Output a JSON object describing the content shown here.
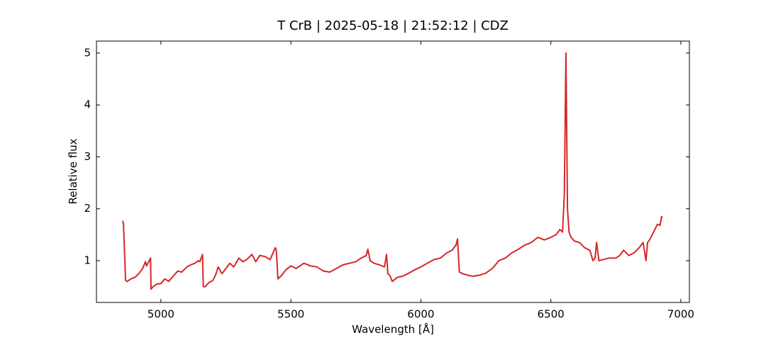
{
  "chart_data": {
    "type": "line",
    "title": "T CrB | 2025-05-18 | 21:52:12 | CDZ",
    "x_label": "Wavelength [Å]",
    "y_label": "Relative flux",
    "xlim": [
      4752,
      7033
    ],
    "ylim": [
      0.195,
      5.23
    ],
    "xticks": [
      5000,
      5500,
      6000,
      6500,
      7000
    ],
    "yticks": [
      1,
      2,
      3,
      4,
      5
    ],
    "series": [
      {
        "name": "T CrB",
        "color": "#d62728",
        "x": [
          4853,
          4856,
          4864,
          4870,
          4885,
          4900,
          4915,
          4930,
          4940,
          4945,
          4955,
          4960,
          4962,
          4970,
          4985,
          5000,
          5015,
          5030,
          5050,
          5065,
          5080,
          5100,
          5115,
          5130,
          5145,
          5150,
          5160,
          5163,
          5170,
          5185,
          5200,
          5210,
          5220,
          5235,
          5250,
          5265,
          5280,
          5300,
          5315,
          5330,
          5350,
          5365,
          5380,
          5400,
          5420,
          5440,
          5444,
          5450,
          5465,
          5480,
          5500,
          5520,
          5550,
          5575,
          5600,
          5625,
          5650,
          5675,
          5700,
          5725,
          5750,
          5770,
          5790,
          5796,
          5805,
          5820,
          5840,
          5860,
          5868,
          5873,
          5880,
          5890,
          5910,
          5930,
          5950,
          5975,
          6000,
          6025,
          6050,
          6075,
          6100,
          6120,
          6135,
          6141,
          6148,
          6160,
          6180,
          6200,
          6225,
          6250,
          6275,
          6300,
          6325,
          6350,
          6375,
          6400,
          6425,
          6450,
          6475,
          6500,
          6520,
          6535,
          6545,
          6552,
          6558,
          6564,
          6570,
          6578,
          6590,
          6610,
          6630,
          6650,
          6662,
          6670,
          6676,
          6685,
          6700,
          6725,
          6750,
          6765,
          6780,
          6800,
          6820,
          6840,
          6855,
          6866,
          6872,
          6880,
          6895,
          6910,
          6920,
          6926,
          6929
        ],
        "values": [
          1.77,
          1.7,
          0.62,
          0.6,
          0.65,
          0.68,
          0.75,
          0.85,
          0.98,
          0.9,
          1.0,
          1.05,
          0.45,
          0.5,
          0.55,
          0.56,
          0.65,
          0.6,
          0.72,
          0.8,
          0.78,
          0.88,
          0.92,
          0.95,
          1.0,
          0.98,
          1.12,
          0.5,
          0.5,
          0.58,
          0.62,
          0.72,
          0.88,
          0.75,
          0.85,
          0.95,
          0.88,
          1.05,
          0.98,
          1.02,
          1.12,
          0.98,
          1.1,
          1.08,
          1.02,
          1.25,
          1.2,
          0.65,
          0.72,
          0.82,
          0.9,
          0.85,
          0.95,
          0.9,
          0.88,
          0.8,
          0.78,
          0.85,
          0.92,
          0.95,
          0.98,
          1.05,
          1.1,
          1.22,
          1.0,
          0.95,
          0.92,
          0.88,
          1.12,
          0.75,
          0.72,
          0.6,
          0.68,
          0.7,
          0.75,
          0.82,
          0.88,
          0.95,
          1.02,
          1.05,
          1.15,
          1.2,
          1.3,
          1.42,
          0.78,
          0.75,
          0.72,
          0.7,
          0.72,
          0.76,
          0.85,
          1.0,
          1.05,
          1.15,
          1.22,
          1.3,
          1.35,
          1.45,
          1.4,
          1.45,
          1.5,
          1.6,
          1.55,
          2.3,
          5.0,
          2.0,
          1.55,
          1.45,
          1.38,
          1.35,
          1.25,
          1.2,
          1.0,
          1.05,
          1.35,
          1.0,
          1.02,
          1.05,
          1.05,
          1.1,
          1.2,
          1.1,
          1.15,
          1.25,
          1.35,
          1.0,
          1.35,
          1.4,
          1.55,
          1.7,
          1.68,
          1.85,
          1.83
        ]
      }
    ]
  }
}
